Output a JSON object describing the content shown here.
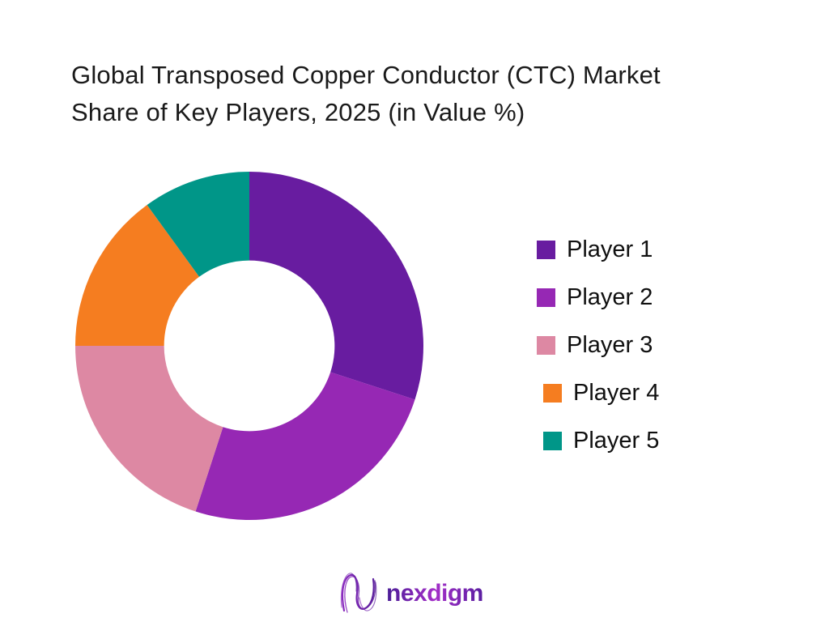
{
  "title": {
    "line1": "Global Transposed Copper Conductor (CTC) Market",
    "line2": "Share of Key Players, 2025 (in Value %)"
  },
  "chart_data": {
    "type": "pie",
    "subtype": "donut",
    "title": "Global Transposed Copper Conductor (CTC) Market Share of Key Players, 2025 (in Value %)",
    "labels": [
      "Player 1",
      "Player 2",
      "Player 3",
      "Player 4",
      "Player 5"
    ],
    "values": [
      30,
      25,
      20,
      15,
      10
    ],
    "unit": "value %",
    "colors": [
      "#681CA0",
      "#9628B4",
      "#DD88A3",
      "#F57D20",
      "#009688"
    ],
    "start_angle_deg": 0,
    "direction": "clockwise",
    "inner_radius_ratio": 0.49,
    "legend_position": "right",
    "data_labels": false,
    "grid": false
  },
  "logo": {
    "text": "nexdigm",
    "gradient": [
      "#4A1D96",
      "#A42FC9",
      "#5A1EA0"
    ]
  }
}
